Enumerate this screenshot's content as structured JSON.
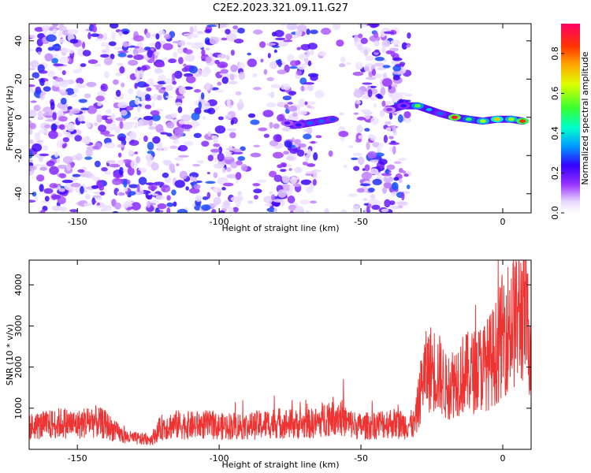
{
  "title": "C2E2.2023.321.09.11.G27",
  "chart_data": [
    {
      "type": "heatmap",
      "xlabel": "Height of straight line (km)",
      "ylabel": "Frequency (Hz)",
      "xlim": [
        -167,
        10
      ],
      "ylim": [
        -50,
        49
      ],
      "xticks": [
        "-150",
        "-100",
        "-50",
        "0"
      ],
      "xtick_values": [
        -150,
        -100,
        -50,
        0
      ],
      "yticks": [
        "-40",
        "-20",
        "0",
        "20",
        "40"
      ],
      "ytick_values": [
        -40,
        -20,
        0,
        20,
        40
      ],
      "colorbar": {
        "label": "Normalized spectral amplitude",
        "range": [
          0,
          0.95
        ],
        "ticks": [
          "0.0",
          "0.2",
          "0.4",
          "0.6",
          "0.8"
        ],
        "tick_values": [
          0,
          0.2,
          0.4,
          0.6,
          0.8
        ]
      },
      "noise_region_km": [
        -167,
        -33
      ],
      "signal_track": [
        {
          "x": -76,
          "y": -3,
          "amp": 0.2
        },
        {
          "x": -72,
          "y": -4,
          "amp": 0.25
        },
        {
          "x": -68,
          "y": -3,
          "amp": 0.3
        },
        {
          "x": -64,
          "y": -2,
          "amp": 0.3
        },
        {
          "x": -60,
          "y": -1,
          "amp": 0.28
        },
        {
          "x": -40,
          "y": 4,
          "amp": 0.15
        },
        {
          "x": -35,
          "y": 6,
          "amp": 0.25
        },
        {
          "x": -30,
          "y": 6,
          "amp": 0.55
        },
        {
          "x": -26,
          "y": 4,
          "amp": 0.35
        },
        {
          "x": -22,
          "y": 2,
          "amp": 0.3
        },
        {
          "x": -17,
          "y": 0,
          "amp": 0.9
        },
        {
          "x": -12,
          "y": -1,
          "amp": 0.5
        },
        {
          "x": -7,
          "y": -2,
          "amp": 0.6
        },
        {
          "x": -2,
          "y": -1,
          "amp": 0.7
        },
        {
          "x": 3,
          "y": -1,
          "amp": 0.6
        },
        {
          "x": 7,
          "y": -2,
          "amp": 0.85
        }
      ]
    },
    {
      "type": "line",
      "xlabel": "Height of straight line (km)",
      "ylabel": "SNR (10 * v/v)",
      "xlim": [
        -167,
        10
      ],
      "ylim": [
        0,
        4600
      ],
      "xticks": [
        "-150",
        "-100",
        "-50",
        "0"
      ],
      "xtick_values": [
        -150,
        -100,
        -50,
        0
      ],
      "yticks": [
        "1000",
        "2000",
        "3000",
        "4000"
      ],
      "ytick_values": [
        1000,
        2000,
        3000,
        4000
      ],
      "color": "#ee3333",
      "x": [
        -167,
        -160,
        -155,
        -150,
        -145,
        -140,
        -137,
        -133,
        -128,
        -124,
        -120,
        -115,
        -110,
        -105,
        -100,
        -95,
        -90,
        -85,
        -80,
        -75,
        -70,
        -65,
        -62,
        -58,
        -55,
        -50,
        -45,
        -40,
        -35,
        -31,
        -28,
        -25,
        -22,
        -20,
        -15,
        -10,
        -5,
        -2,
        0,
        2,
        5,
        7,
        10
      ],
      "y": [
        550,
        600,
        650,
        600,
        700,
        600,
        450,
        300,
        250,
        250,
        550,
        600,
        580,
        600,
        550,
        580,
        560,
        600,
        650,
        620,
        600,
        650,
        800,
        850,
        650,
        550,
        600,
        650,
        600,
        600,
        1800,
        2000,
        1800,
        1500,
        1800,
        1900,
        2100,
        2400,
        2800,
        3000,
        3200,
        3400,
        2600
      ]
    }
  ]
}
